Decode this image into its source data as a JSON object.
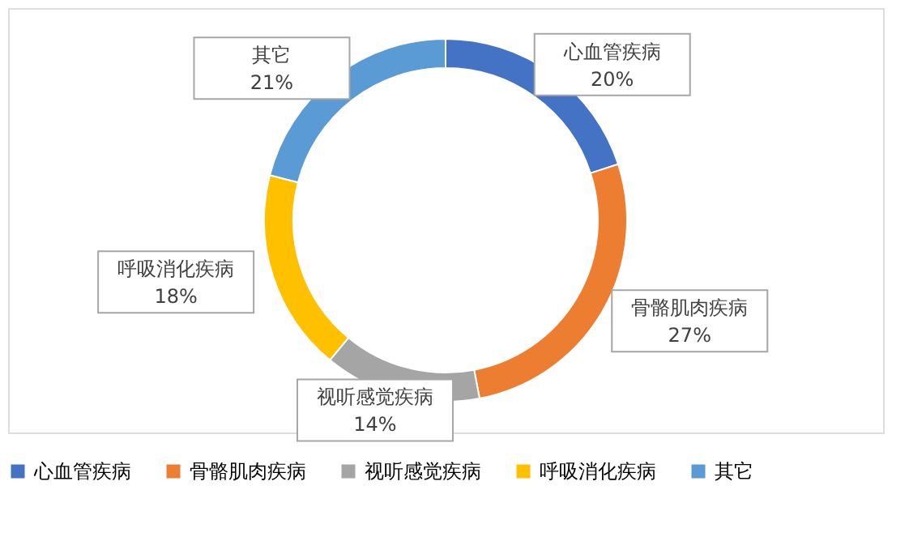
{
  "chart_data": {
    "type": "donut",
    "categories": [
      "心血管疾病",
      "骨骼肌肉疾病",
      "视听感觉疾病",
      "呼吸消化疾病",
      "其它"
    ],
    "values": [
      20,
      27,
      14,
      18,
      21
    ],
    "value_labels": [
      "20%",
      "27%",
      "14%",
      "18%",
      "21%"
    ],
    "colors": [
      "#4472c4",
      "#ed7d31",
      "#a5a5a5",
      "#ffc000",
      "#5b9bd5"
    ],
    "legend": "bottom"
  }
}
